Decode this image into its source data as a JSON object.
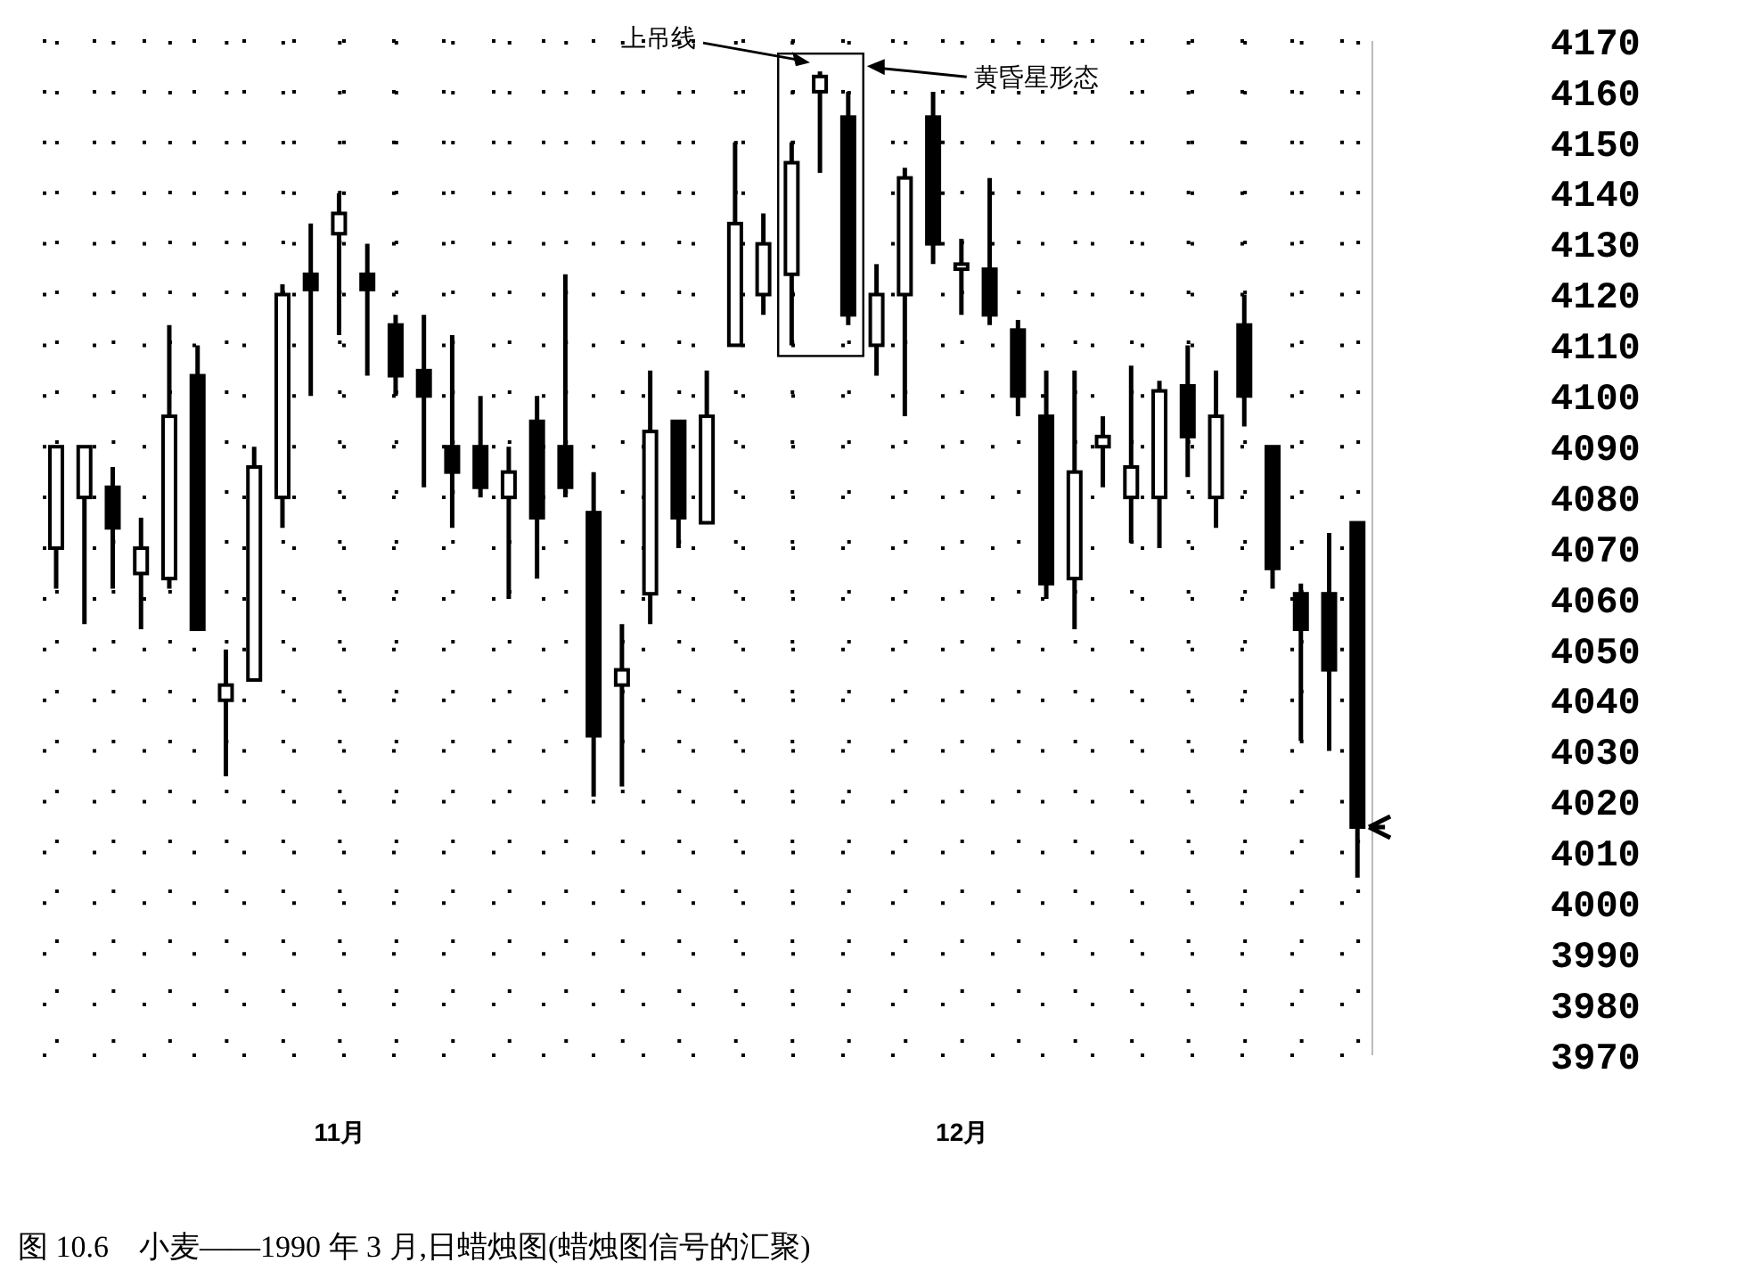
{
  "chart_data": {
    "type": "candlestick",
    "title": "图 10.6　小麦——1990 年 3 月,日蜡烛图(蜡烛图信号的汇聚)",
    "annotations": [
      "上吊线",
      "黄昏星形态"
    ],
    "categories": [
      null,
      null,
      null,
      null,
      null,
      null,
      null,
      null,
      null,
      null,
      "11月",
      null,
      null,
      null,
      null,
      null,
      null,
      null,
      null,
      null,
      null,
      null,
      null,
      null,
      null,
      null,
      null,
      null,
      null,
      null,
      null,
      null,
      "12月",
      null,
      null,
      null,
      null,
      null,
      null,
      null,
      null,
      null,
      null,
      null,
      null,
      null,
      null
    ],
    "ohlc": [
      [
        4070,
        4090,
        4062,
        4090
      ],
      [
        4080,
        4090,
        4055,
        4090
      ],
      [
        4082,
        4086,
        4062,
        4074
      ],
      [
        4065,
        4076,
        4054,
        4070
      ],
      [
        4064,
        4114,
        4062,
        4096
      ],
      [
        4104,
        4110,
        4054,
        4054
      ],
      [
        4040,
        4050,
        4025,
        4043
      ],
      [
        4044,
        4090,
        4044,
        4086
      ],
      [
        4080,
        4122,
        4074,
        4120
      ],
      [
        4124,
        4134,
        4100,
        4121
      ],
      [
        4132,
        4140,
        4112,
        4136
      ],
      [
        4124,
        4130,
        4104,
        4121
      ],
      [
        4114,
        4116,
        4100,
        4104
      ],
      [
        4105,
        4116,
        4082,
        4100
      ],
      [
        4090,
        4112,
        4074,
        4085
      ],
      [
        4090,
        4100,
        4080,
        4082
      ],
      [
        4080,
        4090,
        4060,
        4085
      ],
      [
        4095,
        4100,
        4064,
        4076
      ],
      [
        4090,
        4124,
        4080,
        4082
      ],
      [
        4077,
        4085,
        4021,
        4033
      ],
      [
        4043,
        4055,
        4023,
        4046
      ],
      [
        4061,
        4105,
        4055,
        4093
      ],
      [
        4095,
        4095,
        4070,
        4076
      ],
      [
        4075,
        4105,
        4075,
        4096
      ],
      [
        4110,
        4150,
        4110,
        4134
      ],
      [
        4120,
        4136,
        4116,
        4130
      ],
      [
        4124,
        4150,
        4110,
        4146
      ],
      [
        4160,
        4164,
        4144,
        4163
      ],
      [
        4155,
        4160,
        4114,
        4116
      ],
      [
        4110,
        4126,
        4104,
        4120
      ],
      [
        4120,
        4145,
        4096,
        4143
      ],
      [
        4155,
        4160,
        4126,
        4130
      ],
      [
        4125,
        4131,
        4116,
        4126
      ],
      [
        4125,
        4143,
        4114,
        4116
      ],
      [
        4113,
        4115,
        4096,
        4100
      ],
      [
        4096,
        4105,
        4060,
        4063
      ],
      [
        4064,
        4105,
        4054,
        4085
      ],
      [
        4090,
        4096,
        4082,
        4092
      ],
      [
        4080,
        4106,
        4071,
        4086
      ],
      [
        4080,
        4103,
        4070,
        4101
      ],
      [
        4102,
        4110,
        4084,
        4092
      ],
      [
        4080,
        4105,
        4074,
        4096
      ],
      [
        4114,
        4120,
        4094,
        4100
      ],
      [
        4090,
        4090,
        4062,
        4066
      ],
      [
        4061,
        4063,
        4032,
        4054
      ],
      [
        4061,
        4073,
        4030,
        4046
      ],
      [
        4075,
        4075,
        4005,
        4015
      ]
    ],
    "ylim": [
      3970,
      4170
    ],
    "yticks": [
      3970,
      3980,
      3990,
      4000,
      4010,
      4020,
      4030,
      4040,
      4050,
      4060,
      4070,
      4080,
      4090,
      4100,
      4110,
      4120,
      4130,
      4140,
      4150,
      4160,
      4170
    ],
    "grid": true
  }
}
